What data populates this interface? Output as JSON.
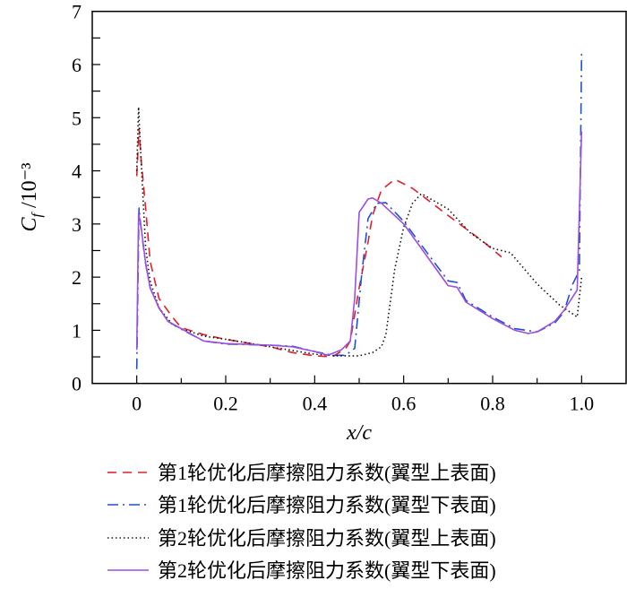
{
  "chart_data": {
    "type": "line",
    "title": "",
    "xlabel": "x/c",
    "ylabel_main": "C",
    "ylabel_sub": "f",
    "ylabel_unit": " /10⁻³",
    "xlim": [
      -0.1,
      1.1
    ],
    "ylim": [
      0,
      7
    ],
    "xticks": [
      0,
      0.2,
      0.4,
      0.6,
      0.8,
      1.0
    ],
    "xtick_labels": [
      "0",
      "0.2",
      "0.4",
      "0.6",
      "0.8",
      "1.0"
    ],
    "yticks": [
      0,
      1,
      2,
      3,
      4,
      5,
      6,
      7
    ],
    "ytick_labels": [
      "0",
      "1",
      "2",
      "3",
      "4",
      "5",
      "6",
      "7"
    ],
    "grid": false,
    "legend_position": "bottom",
    "series": [
      {
        "name": "第1轮优化后摩擦阻力系数(翼型上表面)",
        "color": "#e0202a",
        "style": "dashed",
        "x": [
          0,
          0.005,
          0.01,
          0.02,
          0.03,
          0.05,
          0.08,
          0.1,
          0.15,
          0.2,
          0.3,
          0.35,
          0.4,
          0.44,
          0.47,
          0.48,
          0.5,
          0.52,
          0.53,
          0.55,
          0.58,
          0.62,
          0.7,
          0.78,
          0.82
        ],
        "y": [
          3.9,
          4.8,
          4.2,
          3.3,
          2.3,
          1.6,
          1.25,
          1.05,
          0.92,
          0.83,
          0.69,
          0.58,
          0.52,
          0.5,
          0.66,
          0.8,
          1.8,
          2.66,
          3.16,
          3.64,
          3.84,
          3.67,
          3.16,
          2.66,
          2.38
        ]
      },
      {
        "name": "第1轮优化后摩擦阻力系数(翼型下表面)",
        "color": "#1f4fd8",
        "style": "dashdot",
        "x": [
          0,
          0.005,
          0.01,
          0.02,
          0.03,
          0.05,
          0.07,
          0.1,
          0.15,
          0.2,
          0.3,
          0.35,
          0.4,
          0.44,
          0.47,
          0.48,
          0.49,
          0.505,
          0.52,
          0.54,
          0.56,
          0.6,
          0.7,
          0.72,
          0.74,
          0.8,
          0.85,
          0.9,
          0.94,
          0.96,
          0.98,
          0.995,
          1.0
        ],
        "y": [
          0.27,
          3.3,
          2.9,
          2.25,
          1.8,
          1.42,
          1.17,
          1.02,
          0.8,
          0.74,
          0.72,
          0.7,
          0.6,
          0.53,
          0.53,
          0.6,
          0.66,
          2.0,
          3.1,
          3.39,
          3.4,
          3.05,
          1.93,
          1.9,
          1.56,
          1.25,
          1.03,
          0.97,
          1.14,
          1.34,
          1.87,
          2.12,
          6.2
        ]
      },
      {
        "name": "第2轮优化后摩擦阻力系数(翼型上表面)",
        "color": "#111111",
        "style": "dotted",
        "x": [
          0,
          0.004,
          0.01,
          0.02,
          0.03,
          0.05,
          0.08,
          0.1,
          0.15,
          0.2,
          0.3,
          0.4,
          0.45,
          0.5,
          0.53,
          0.55,
          0.56,
          0.58,
          0.6,
          0.62,
          0.64,
          0.7,
          0.75,
          0.8,
          0.84,
          0.9,
          0.95,
          0.99,
          1.0
        ],
        "y": [
          4.0,
          5.2,
          4.17,
          2.55,
          1.93,
          1.42,
          1.11,
          1.03,
          0.89,
          0.83,
          0.69,
          0.55,
          0.52,
          0.52,
          0.58,
          0.69,
          0.92,
          2.15,
          2.94,
          3.39,
          3.57,
          3.28,
          2.83,
          2.54,
          2.46,
          1.87,
          1.48,
          1.25,
          2.0
        ]
      },
      {
        "name": "第2轮优化后摩擦阻力系数(翼型下表面)",
        "color": "#9b4fe0",
        "style": "solid",
        "x": [
          0,
          0.004,
          0.01,
          0.02,
          0.03,
          0.05,
          0.07,
          0.1,
          0.15,
          0.2,
          0.3,
          0.35,
          0.4,
          0.43,
          0.46,
          0.48,
          0.49,
          0.5,
          0.52,
          0.53,
          0.55,
          0.6,
          0.7,
          0.72,
          0.74,
          0.8,
          0.85,
          0.88,
          0.9,
          0.94,
          0.96,
          0.99,
          1.0
        ],
        "y": [
          0.63,
          3.2,
          2.94,
          2.26,
          1.8,
          1.42,
          1.17,
          1.03,
          0.8,
          0.75,
          0.72,
          0.69,
          0.6,
          0.53,
          0.63,
          0.8,
          1.6,
          3.22,
          3.47,
          3.49,
          3.39,
          3.0,
          1.84,
          1.81,
          1.53,
          1.22,
          1.0,
          0.94,
          0.97,
          1.17,
          1.37,
          1.76,
          4.74
        ]
      }
    ]
  }
}
